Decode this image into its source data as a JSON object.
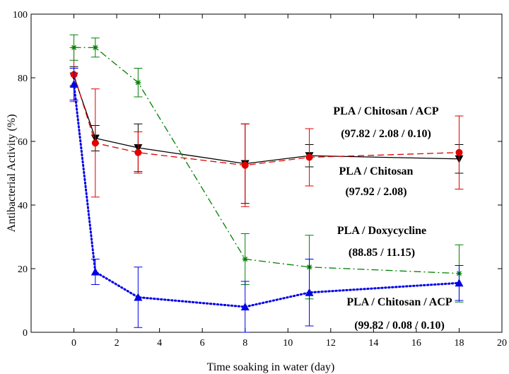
{
  "chart_data": {
    "type": "line",
    "title": "",
    "xlabel": "Time soaking in water (day)",
    "ylabel": "Antibacterial Activity (%)",
    "xlim": [
      -2,
      20
    ],
    "ylim": [
      0,
      100
    ],
    "xticks": [
      0,
      2,
      4,
      6,
      8,
      10,
      12,
      14,
      16,
      18,
      20
    ],
    "yticks": [
      0,
      20,
      40,
      60,
      80,
      100
    ],
    "grid": false,
    "legend": "none",
    "series": [
      {
        "name": "PLA / Chitosan / ACP",
        "composition": "(97.82 / 2.08 / 0.10)",
        "color": "#000000",
        "marker": "triangle-down",
        "dash": "solid",
        "x": [
          0,
          1,
          3,
          8,
          11,
          18
        ],
        "y": [
          80.5,
          61,
          58,
          53,
          55.5,
          54.5
        ],
        "err": [
          3,
          4,
          7.5,
          12.5,
          3.5,
          4.5
        ]
      },
      {
        "name": "PLA / Chitosan",
        "composition": "(97.92 / 2.08)",
        "color": "#e00000",
        "marker": "circle",
        "dash": "dashed",
        "x": [
          0,
          1,
          3,
          8,
          11,
          18
        ],
        "y": [
          81,
          59.5,
          56.5,
          52.5,
          55,
          56.5
        ],
        "err": [
          8.5,
          17,
          6.5,
          13,
          9,
          11.5
        ]
      },
      {
        "name": "PLA / Doxycycline",
        "composition": "(88.85 / 11.15)",
        "color": "#008000",
        "marker": "star",
        "dash": "dashdot",
        "x": [
          0,
          1,
          3,
          8,
          11,
          18
        ],
        "y": [
          89.5,
          89.5,
          78.5,
          23,
          20.5,
          18.5
        ],
        "err": [
          4,
          3,
          4.5,
          8,
          10,
          9
        ]
      },
      {
        "name": "PLA / Chitosan / ACP",
        "composition": "(99.82 / 0.08 / 0.10)",
        "color": "#0000e6",
        "marker": "triangle-up",
        "dash": "dotted",
        "x": [
          0,
          1,
          3,
          8,
          11,
          18
        ],
        "y": [
          78,
          19,
          11,
          8,
          12.5,
          15.5
        ],
        "err": [
          5,
          4,
          9.5,
          8,
          10.5,
          5.5
        ]
      }
    ]
  }
}
